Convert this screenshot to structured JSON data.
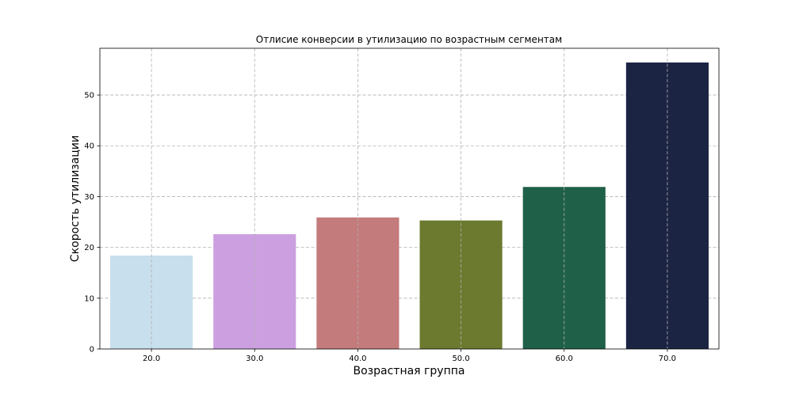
{
  "chart_data": {
    "type": "bar",
    "title": "Отлисие конверсии в утилизацию по возрастным сегментам",
    "xlabel": "Возрастная группа",
    "ylabel": "Скорость утилизации",
    "categories": [
      "20.0",
      "30.0",
      "40.0",
      "50.0",
      "60.0",
      "70.0"
    ],
    "values": [
      18.4,
      22.6,
      25.9,
      25.3,
      31.9,
      56.4
    ],
    "colors": [
      "#c8e0ee",
      "#cca0e0",
      "#c47b7b",
      "#6b7a2f",
      "#1f6048",
      "#1c2444"
    ],
    "ylim": [
      0,
      59.2
    ],
    "yticks": [
      0,
      10,
      20,
      30,
      40,
      50
    ],
    "grid": true
  }
}
